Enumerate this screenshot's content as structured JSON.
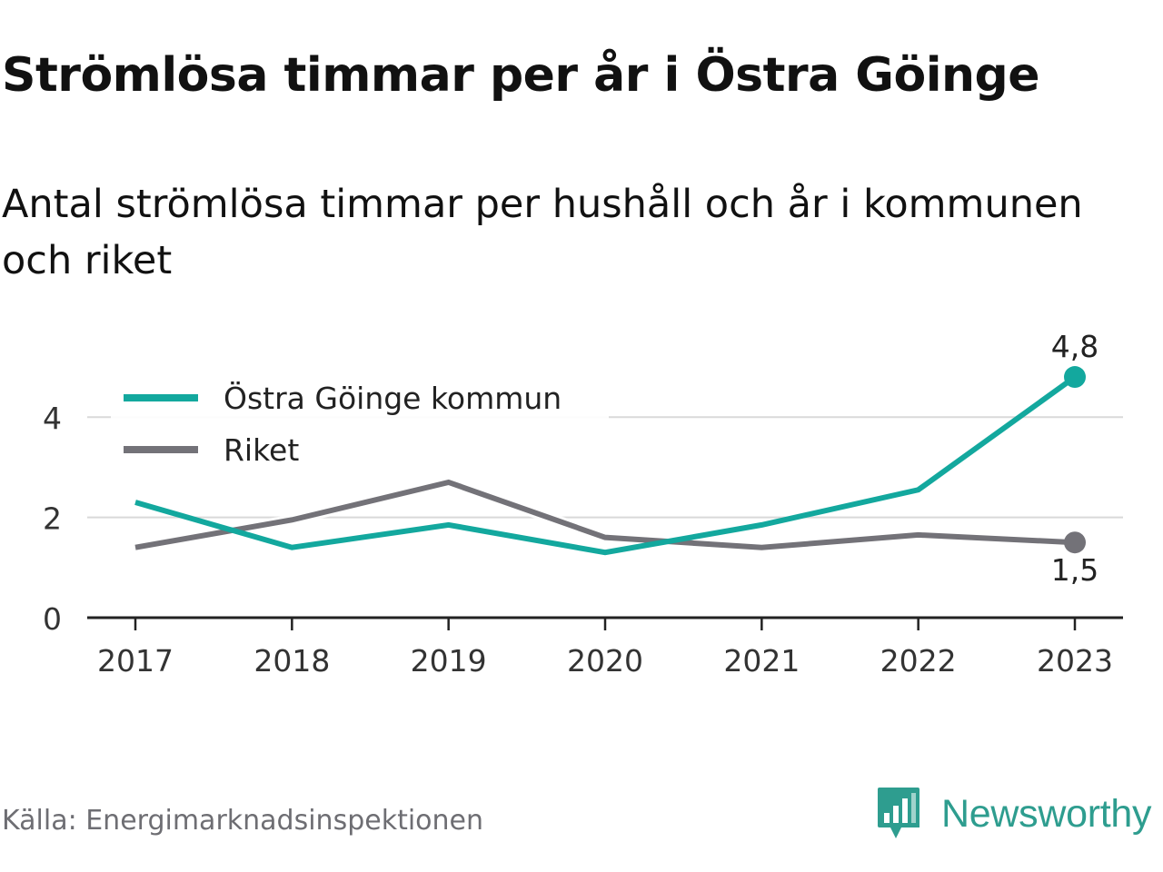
{
  "title": "Strömlösa timmar per år i Östra Göinge",
  "subtitle": "Antal strömlösa timmar per hushåll och år i kommunen och riket",
  "source": "Källa: Energimarknadsinspektionen",
  "brand": {
    "name": "Newsworthy",
    "icon": "newsworthy-logo-icon",
    "color": "#2e9d8f"
  },
  "chart_data": {
    "type": "line",
    "x": [
      "2017",
      "2018",
      "2019",
      "2020",
      "2021",
      "2022",
      "2023"
    ],
    "ylim": [
      0,
      5
    ],
    "yticks": [
      0,
      2,
      4
    ],
    "grid": true,
    "legend_placement": "top-left",
    "series": [
      {
        "name": "Östra Göinge kommun",
        "color": "#13a89e",
        "values": [
          2.3,
          1.4,
          1.85,
          1.3,
          1.85,
          2.55,
          4.8
        ],
        "end_label": "4,8"
      },
      {
        "name": "Riket",
        "color": "#737278",
        "values": [
          1.4,
          1.95,
          2.7,
          1.6,
          1.4,
          1.65,
          1.5
        ],
        "end_label": "1,5"
      }
    ]
  }
}
